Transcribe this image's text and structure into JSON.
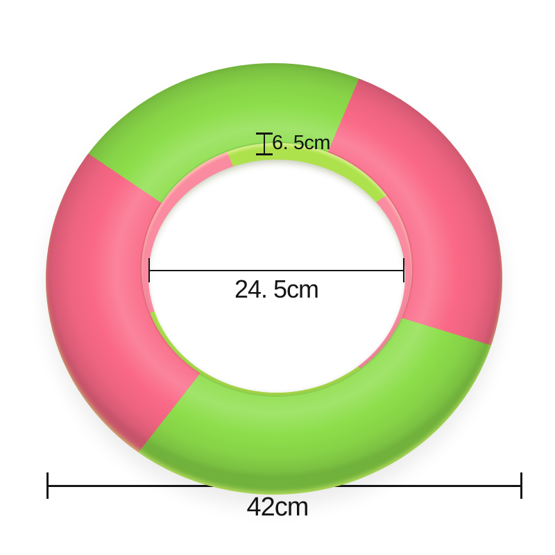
{
  "page": {
    "background": "#ffffff",
    "subject": "two-color foam ring toy with dimension annotations"
  },
  "product": {
    "name": "foam-ring",
    "colors": {
      "green": "#8dde4b",
      "green_wall": "#aee24c",
      "pink": "#fa6987",
      "pink_wall": "#fa8ba0"
    },
    "segments": [
      {
        "position": "top",
        "color": "green"
      },
      {
        "position": "right",
        "color": "pink"
      },
      {
        "position": "bottom",
        "color": "green"
      },
      {
        "position": "left",
        "color": "pink"
      }
    ]
  },
  "measurements": {
    "thickness": {
      "label": "6. 5cm",
      "value_cm": 6.5
    },
    "inner_diameter": {
      "label": "24. 5cm",
      "value_cm": 24.5
    },
    "outer_diameter": {
      "label": "42cm",
      "value_cm": 42
    }
  }
}
